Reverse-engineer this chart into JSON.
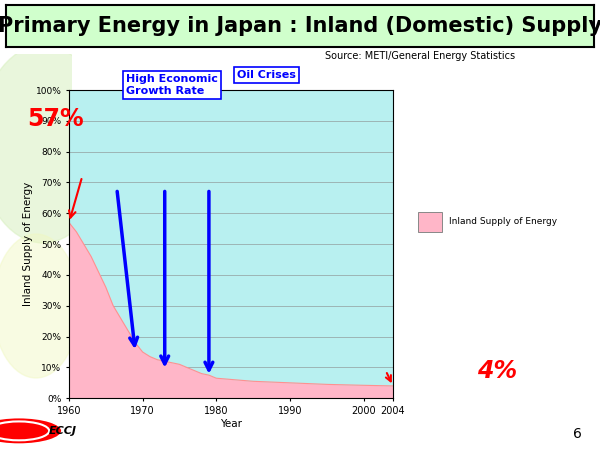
{
  "title": "Primary Energy in Japan : Inland (Domestic) Supply",
  "source": "Source: METI/General Energy Statistics",
  "xlabel": "Year",
  "ylabel": "Inland Supply of Energy",
  "bg_color": "#ffffff",
  "chart_bg_color": "#b8f0f0",
  "fill_color": "#ffb6c8",
  "fill_edge_color": "#ff9090",
  "years_fine": [
    1960,
    1961,
    1962,
    1963,
    1964,
    1965,
    1966,
    1967,
    1968,
    1969,
    1970,
    1971,
    1972,
    1973,
    1974,
    1975,
    1976,
    1977,
    1978,
    1979,
    1980,
    1985,
    1990,
    1995,
    2000,
    2004
  ],
  "values_fine": [
    57,
    54,
    50,
    46,
    41,
    36,
    30,
    26,
    22,
    18,
    15,
    13.5,
    12.5,
    12,
    11.5,
    11,
    10,
    9,
    8,
    7.5,
    6.5,
    5.5,
    5,
    4.5,
    4.2,
    4.0
  ],
  "yticks": [
    0,
    10,
    20,
    30,
    40,
    50,
    60,
    70,
    80,
    90,
    100
  ],
  "ytick_labels": [
    "0%",
    "10%",
    "20%",
    "30%",
    "40%",
    "50%",
    "60%",
    "70%",
    "80%",
    "90%",
    "100%"
  ],
  "xticks": [
    1960,
    1970,
    1980,
    1990,
    2000,
    2004
  ],
  "xlim": [
    1960,
    2004
  ],
  "ylim": [
    0,
    100
  ],
  "legend_label": "Inland Supply of Energy",
  "page_num": "6",
  "eccj_logo_text": "ECCJ",
  "title_box_color": "#d0ffcc",
  "title_fontsize": 15,
  "label_fontsize": 7.5
}
